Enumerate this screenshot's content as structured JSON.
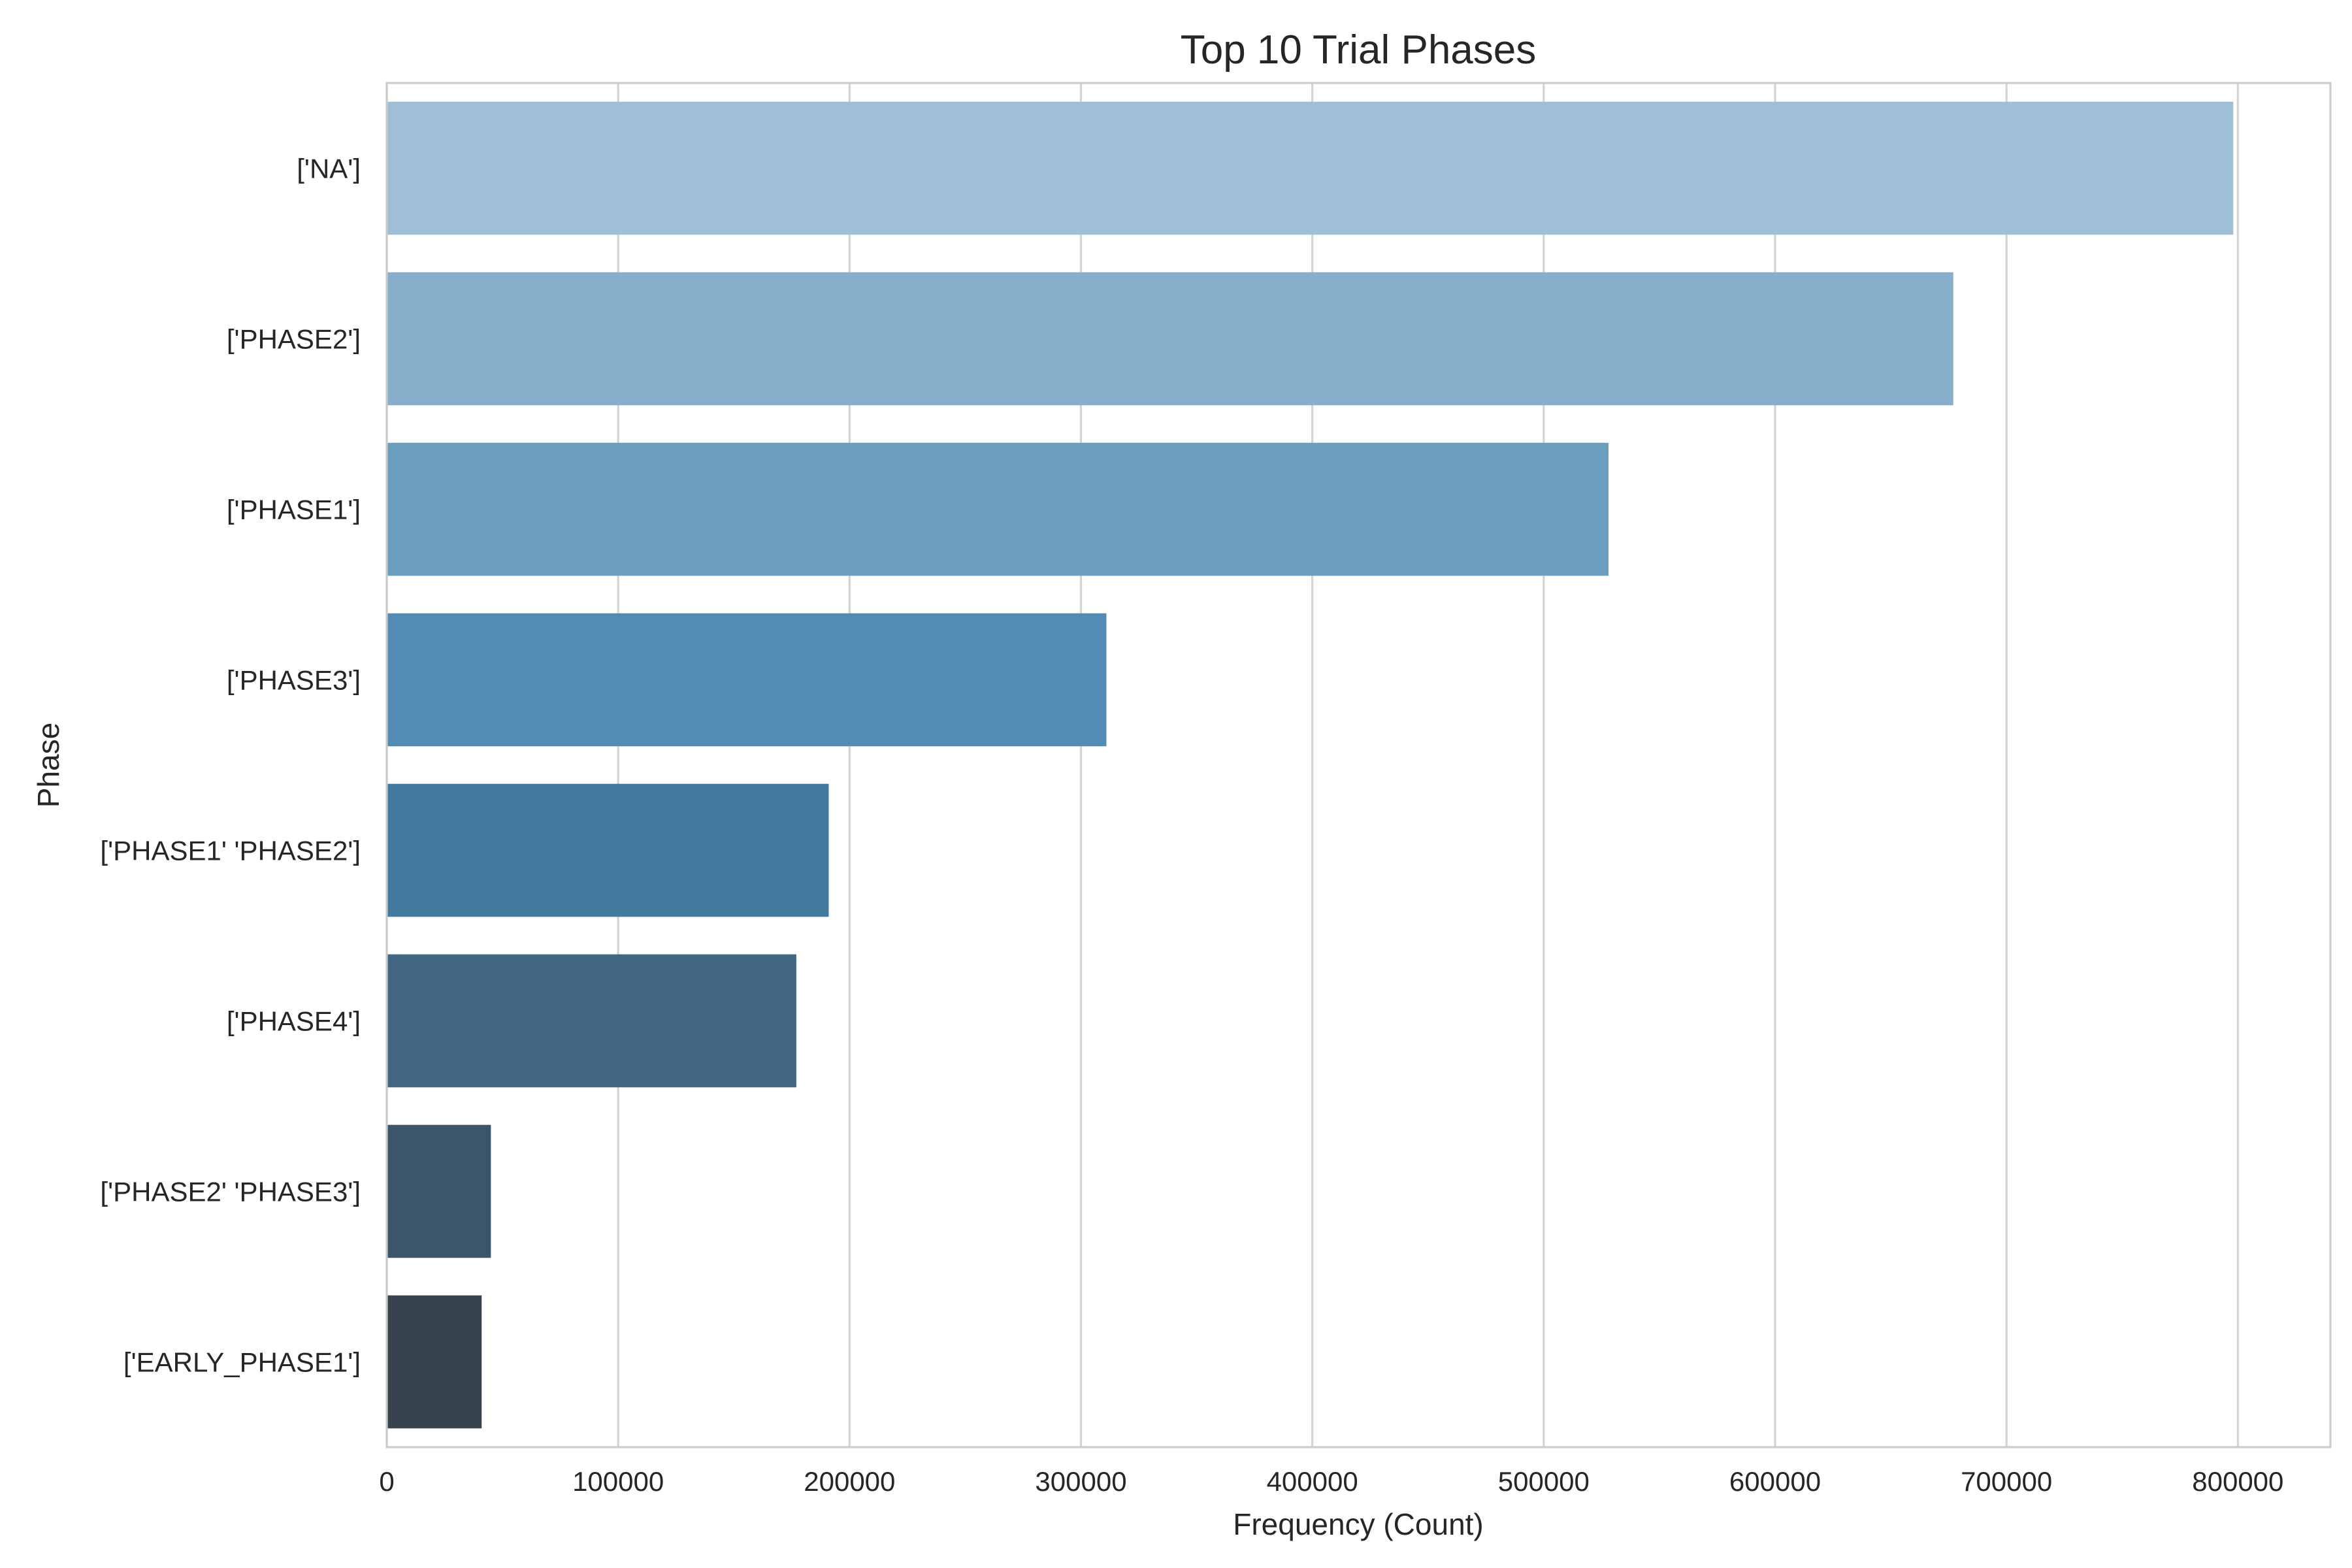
{
  "chart_data": {
    "type": "bar",
    "orientation": "horizontal",
    "title": "Top 10 Trial Phases",
    "xlabel": "Frequency (Count)",
    "ylabel": "Phase",
    "categories": [
      "['NA']",
      "['PHASE2']",
      "['PHASE1']",
      "['PHASE3']",
      "['PHASE1' 'PHASE2']",
      "['PHASE4']",
      "['PHASE2' 'PHASE3']",
      "['EARLY_PHASE1']"
    ],
    "values": [
      798000,
      677000,
      528000,
      311000,
      191000,
      177000,
      45000,
      41000
    ],
    "colors": [
      "#9ebfd6",
      "#87aecb",
      "#6b9dbf",
      "#528cb5",
      "#4479a0",
      "#416682",
      "#3b566a",
      "#37444f"
    ],
    "xlim": [
      0,
      840000
    ],
    "xticks": [
      0,
      100000,
      200000,
      300000,
      400000,
      500000,
      600000,
      700000,
      800000
    ],
    "xtick_labels": [
      "0",
      "100000",
      "200000",
      "300000",
      "400000",
      "500000",
      "600000",
      "700000",
      "800000"
    ],
    "grid": "vertical",
    "legend": "none"
  }
}
